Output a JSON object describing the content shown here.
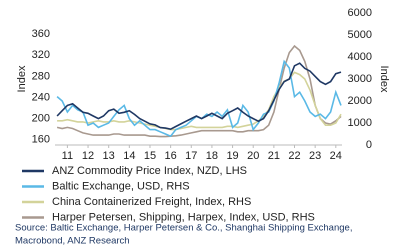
{
  "chart_data": {
    "type": "line",
    "y_label": "Index",
    "y2_label": "Index",
    "x": [
      10.5,
      10.75,
      11,
      11.25,
      11.5,
      11.75,
      12,
      12.25,
      12.5,
      12.75,
      13,
      13.25,
      13.5,
      13.75,
      14,
      14.25,
      14.5,
      14.75,
      15,
      15.25,
      15.5,
      15.75,
      16,
      16.25,
      16.5,
      16.75,
      17,
      17.25,
      17.5,
      17.75,
      18,
      18.25,
      18.5,
      18.75,
      19,
      19.25,
      19.5,
      19.75,
      20,
      20.25,
      20.5,
      20.75,
      21,
      21.25,
      21.5,
      21.75,
      22,
      22.25,
      22.5,
      22.75,
      23,
      23.25,
      23.5,
      23.75,
      24,
      24.25
    ],
    "xlim": [
      10.4,
      24.3
    ],
    "xticks": [
      11,
      12,
      13,
      14,
      15,
      16,
      17,
      18,
      19,
      20,
      21,
      22,
      23,
      24
    ],
    "ylim": [
      150,
      400
    ],
    "yticks": [
      160,
      200,
      240,
      280,
      320,
      360
    ],
    "y2lim": [
      0,
      6000
    ],
    "y2ticks": [
      0,
      1000,
      2000,
      3000,
      4000,
      5000,
      6000
    ],
    "series": [
      {
        "name": "ANZ Commodity Price Index, NZD, LHS",
        "color": "#1f3864",
        "axis": "y",
        "values": [
          205,
          215,
          225,
          228,
          220,
          212,
          210,
          205,
          200,
          205,
          215,
          218,
          210,
          212,
          215,
          208,
          200,
          195,
          190,
          188,
          183,
          182,
          180,
          185,
          190,
          195,
          200,
          205,
          200,
          205,
          210,
          205,
          200,
          210,
          215,
          220,
          212,
          205,
          200,
          195,
          200,
          215,
          235,
          255,
          270,
          275,
          300,
          305,
          295,
          290,
          280,
          270,
          265,
          270,
          285,
          288
        ]
      },
      {
        "name": "Baltic Exchange, USD, RHS",
        "color": "#5ab9e6",
        "axis": "y2",
        "values": [
          2200,
          2000,
          1500,
          1800,
          1600,
          1500,
          900,
          1000,
          800,
          900,
          1000,
          1300,
          1600,
          1800,
          1200,
          900,
          1100,
          900,
          700,
          700,
          600,
          500,
          400,
          700,
          800,
          900,
          1100,
          1300,
          1200,
          1400,
          1300,
          1500,
          1300,
          1600,
          800,
          1000,
          1800,
          1500,
          700,
          1000,
          1400,
          1500,
          2000,
          2800,
          3800,
          3500,
          2200,
          2400,
          2000,
          1500,
          1300,
          1400,
          1200,
          1500,
          2400,
          1800
        ]
      },
      {
        "name": "China Containerized Freight, Index, RHS",
        "color": "#d3d39a",
        "axis": "y2",
        "values": [
          1100,
          1100,
          1150,
          1100,
          1050,
          1050,
          1000,
          1050,
          1100,
          1050,
          1050,
          1100,
          1050,
          1050,
          1100,
          1050,
          1000,
          950,
          900,
          850,
          800,
          750,
          700,
          700,
          750,
          800,
          850,
          800,
          800,
          800,
          800,
          800,
          800,
          850,
          850,
          800,
          850,
          900,
          950,
          1100,
          1300,
          1600,
          2200,
          2600,
          2900,
          3000,
          3300,
          3200,
          3000,
          2500,
          1800,
          1200,
          900,
          900,
          1000,
          1400
        ]
      },
      {
        "name": "Harper Petersen, Shipping, Harpex, Index, USD, RHS",
        "color": "#a8998f",
        "axis": "y2",
        "values": [
          800,
          750,
          800,
          750,
          650,
          550,
          500,
          450,
          450,
          450,
          450,
          500,
          500,
          450,
          450,
          450,
          450,
          450,
          400,
          400,
          380,
          380,
          400,
          420,
          450,
          500,
          550,
          600,
          650,
          650,
          650,
          650,
          650,
          650,
          650,
          600,
          600,
          650,
          650,
          650,
          700,
          900,
          1500,
          2500,
          3500,
          4200,
          4500,
          4300,
          3800,
          3000,
          1800,
          1200,
          1000,
          950,
          1100,
          1300
        ]
      }
    ],
    "source": [
      "Source: Baltic Exchange, Harper Petersen & Co., Shanghai Shipping Exchange,",
      "Macrobond, ANZ Research"
    ]
  }
}
